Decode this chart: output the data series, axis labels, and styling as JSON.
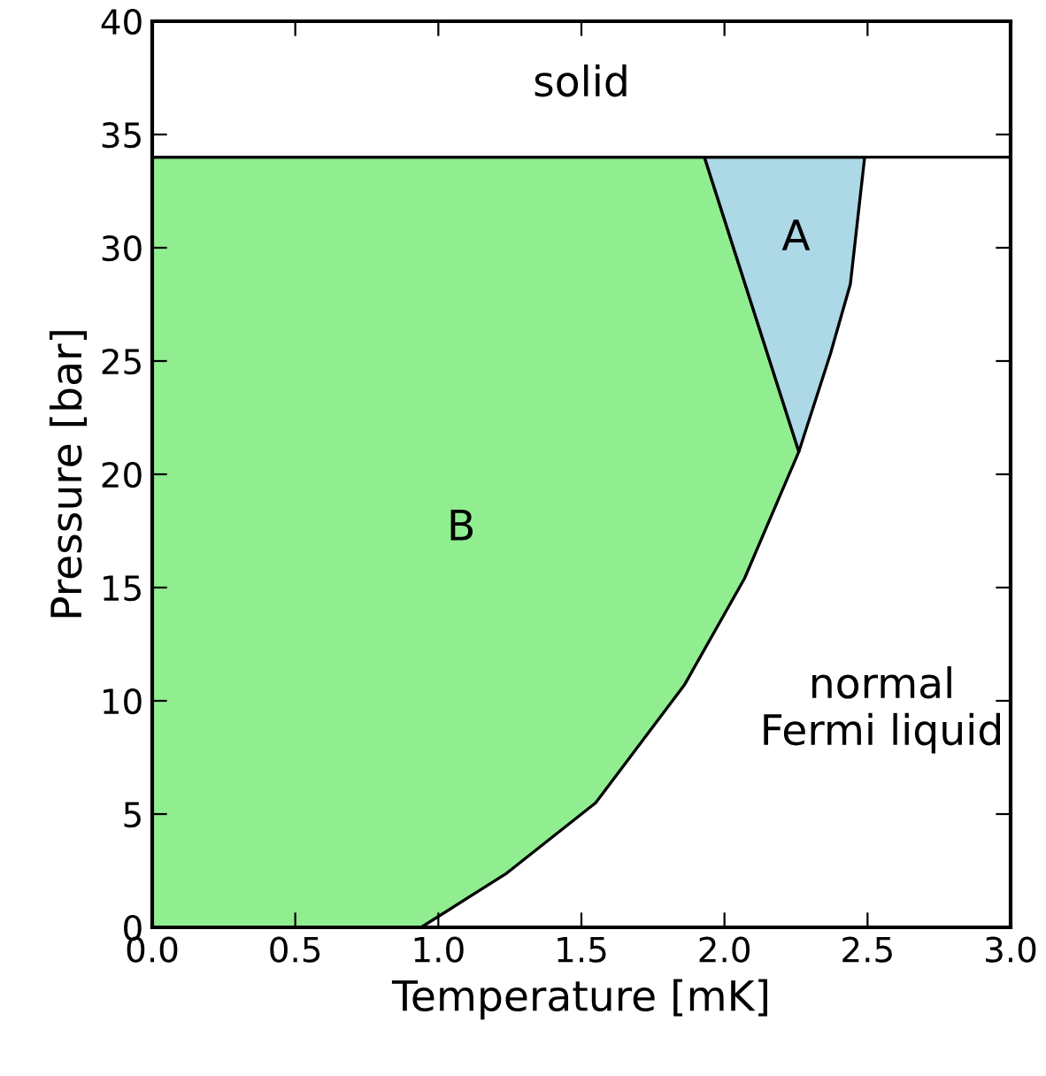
{
  "chart_data": {
    "type": "area",
    "xlabel": "Temperature [mK]",
    "ylabel": "Pressure [bar]",
    "series": [
      {
        "color": "#90ee90",
        "x": [
          0.0,
          0.94,
          1.24,
          1.55,
          1.86,
          2.07,
          2.26,
          1.93,
          0.0
        ],
        "values": [
          0,
          0,
          2.4,
          5.5,
          10.7,
          15.4,
          21.0,
          34.0,
          34.0
        ]
      },
      {
        "color": "#add8e6",
        "x": [
          1.93,
          2.26,
          2.37,
          2.44,
          2.49
        ],
        "values": [
          34.0,
          21.0,
          25.3,
          28.4,
          34.0
        ]
      }
    ],
    "ref_lines": [
      {
        "axis": "y",
        "value": 34.0,
        "color": "#000000"
      }
    ],
    "annotations": [
      "solid",
      "A",
      "B",
      "normal\nFermi liquid"
    ],
    "xlim": [
      0.0,
      3.0
    ],
    "ylim": [
      0,
      40
    ],
    "xticks": [
      {
        "value": 0,
        "label": "0.0"
      },
      {
        "value": 0.5,
        "label": "0.5"
      },
      {
        "value": 1,
        "label": "1.0"
      },
      {
        "value": 1.5,
        "label": "1.5"
      },
      {
        "value": 2,
        "label": "2.0"
      },
      {
        "value": 2.5,
        "label": "2.5"
      },
      {
        "value": 3,
        "label": "3.0"
      }
    ],
    "yticks": [
      0,
      5,
      10,
      15,
      20,
      25,
      30,
      35,
      40
    ],
    "grid": false,
    "legend": false
  }
}
